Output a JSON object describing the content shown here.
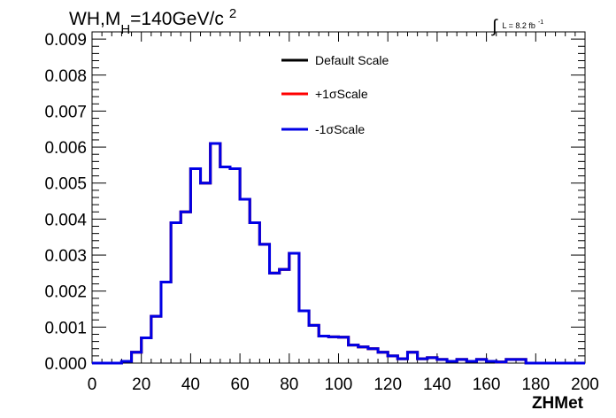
{
  "chart_data": {
    "type": "line",
    "title": {
      "base": "WH,M",
      "subscript": "H",
      "rest": "=140GeV/c",
      "superscript": "2"
    },
    "luminosity": {
      "integral": "∫",
      "text": "L = 8.2 fb",
      "superscript": "-1"
    },
    "xlabel": "ZHMet",
    "ylabel": "",
    "xlim": [
      0,
      200
    ],
    "ylim": [
      0,
      0.0092
    ],
    "xticks": [
      0,
      20,
      40,
      60,
      80,
      100,
      120,
      140,
      160,
      180,
      200
    ],
    "xtick_labels": [
      "0",
      "20",
      "40",
      "60",
      "80",
      "100",
      "120",
      "140",
      "160",
      "180",
      "200"
    ],
    "yticks": [
      0,
      0.001,
      0.002,
      0.003,
      0.004,
      0.005,
      0.006,
      0.007,
      0.008,
      0.009
    ],
    "ytick_labels": [
      "0.000",
      "0.001",
      "0.002",
      "0.003",
      "0.004",
      "0.005",
      "0.006",
      "0.007",
      "0.008",
      "0.009"
    ],
    "bin_edges": [
      0,
      4,
      8,
      12,
      16,
      20,
      24,
      28,
      32,
      36,
      40,
      44,
      48,
      52,
      56,
      60,
      64,
      68,
      72,
      76,
      80,
      84,
      88,
      92,
      96,
      100,
      104,
      108,
      112,
      116,
      120,
      124,
      128,
      132,
      136,
      140,
      144,
      148,
      152,
      156,
      160,
      164,
      168,
      172,
      176,
      180,
      184,
      188,
      192,
      196,
      200
    ],
    "grid": false,
    "legend_position": "top-center",
    "series": [
      {
        "name": "Default Scale",
        "color": "#000000",
        "values": [
          0,
          0,
          0,
          5e-05,
          0.0003,
          0.0007,
          0.0013,
          0.00225,
          0.0039,
          0.0042,
          0.0054,
          0.005,
          0.0061,
          0.00545,
          0.0054,
          0.00455,
          0.0039,
          0.0033,
          0.0025,
          0.0026,
          0.00305,
          0.00145,
          0.00105,
          0.00075,
          0.00073,
          0.00072,
          0.0005,
          0.00045,
          0.0004,
          0.0003,
          0.0002,
          0.00012,
          0.0003,
          0.00012,
          0.00015,
          0.0001,
          5e-05,
          0.0001,
          5e-05,
          0.0001,
          5e-05,
          3e-05,
          0.0001,
          0.0001,
          0,
          0,
          0,
          0,
          0,
          0
        ]
      },
      {
        "name": "+1σScale",
        "color": "#ff0000",
        "values": [
          0,
          0,
          0,
          5e-05,
          0.0003,
          0.0007,
          0.0013,
          0.00225,
          0.0039,
          0.0042,
          0.0054,
          0.005,
          0.0061,
          0.00545,
          0.0054,
          0.00455,
          0.0039,
          0.0033,
          0.0025,
          0.0026,
          0.00305,
          0.00145,
          0.00105,
          0.00075,
          0.00073,
          0.00072,
          0.0005,
          0.00045,
          0.0004,
          0.0003,
          0.0002,
          0.00012,
          0.0003,
          0.00012,
          0.00015,
          0.0001,
          5e-05,
          0.0001,
          5e-05,
          0.0001,
          5e-05,
          3e-05,
          0.0001,
          0.0001,
          0,
          0,
          0,
          0,
          0,
          0
        ]
      },
      {
        "name": "-1σScale",
        "color": "#0000e6",
        "values": [
          0,
          0,
          0,
          5e-05,
          0.0003,
          0.0007,
          0.0013,
          0.00225,
          0.0039,
          0.0042,
          0.0054,
          0.005,
          0.0061,
          0.00545,
          0.0054,
          0.00455,
          0.0039,
          0.0033,
          0.0025,
          0.0026,
          0.00305,
          0.00145,
          0.00105,
          0.00075,
          0.00073,
          0.00072,
          0.0005,
          0.00045,
          0.0004,
          0.0003,
          0.0002,
          0.00012,
          0.0003,
          0.00012,
          0.00015,
          0.0001,
          5e-05,
          0.0001,
          5e-05,
          0.0001,
          5e-05,
          3e-05,
          0.0001,
          0.0001,
          0,
          0,
          0,
          0,
          0,
          0
        ]
      }
    ]
  }
}
